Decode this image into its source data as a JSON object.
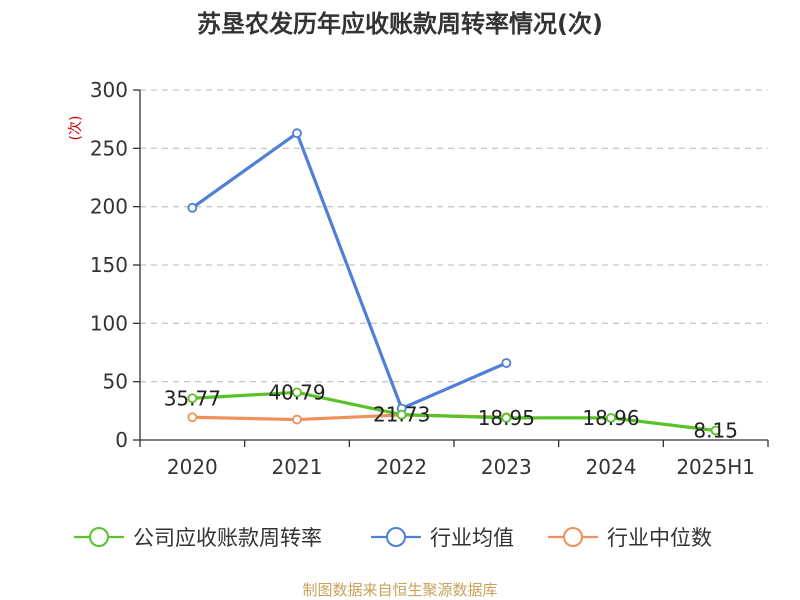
{
  "chart_data": {
    "type": "line",
    "title": "苏垦农发历年应收账款周转率情况(次)",
    "ylabel": "(次)",
    "xlabel": "",
    "categories": [
      "2020",
      "2021",
      "2022",
      "2023",
      "2024",
      "2025H1"
    ],
    "ylim": [
      0,
      300
    ],
    "yticks": [
      0,
      50,
      100,
      150,
      200,
      250,
      300
    ],
    "grid": true,
    "legend_position": "bottom",
    "series": [
      {
        "name": "公司应收账款周转率",
        "color": "#5ac229",
        "values": [
          35.77,
          40.79,
          21.73,
          18.95,
          18.96,
          8.15
        ],
        "labels": [
          "35.77",
          "40.79",
          "21.73",
          "18.95",
          "18.96",
          "8.15"
        ]
      },
      {
        "name": "行业均值",
        "color": "#4f7fd8",
        "values": [
          199,
          263,
          27,
          66,
          null,
          null
        ]
      },
      {
        "name": "行业中位数",
        "color": "#f0905a",
        "values": [
          19.5,
          17.5,
          21.5,
          19.5,
          null,
          null
        ]
      }
    ]
  },
  "source_text": "制图数据来自恒生聚源数据库"
}
